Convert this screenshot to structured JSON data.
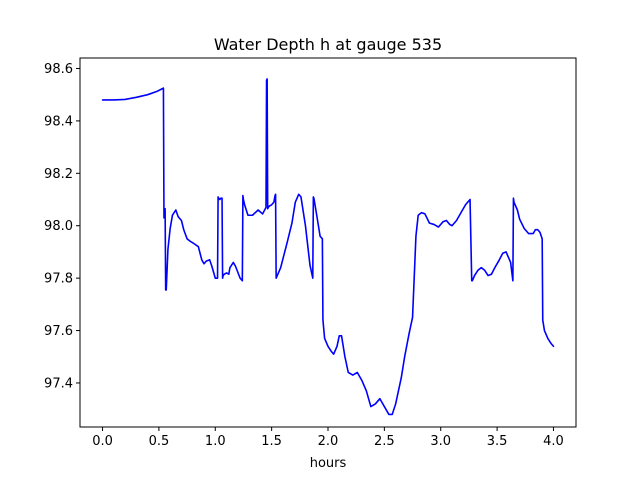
{
  "chart_data": {
    "type": "line",
    "title": "Water Depth h at gauge 535",
    "xlabel": "hours",
    "ylabel": "",
    "xlim": [
      -0.2,
      4.2
    ],
    "ylim": [
      97.232,
      98.64
    ],
    "xticks": [
      0.0,
      0.5,
      1.0,
      1.5,
      2.0,
      2.5,
      3.0,
      3.5,
      4.0
    ],
    "xtick_labels": [
      "0.0",
      "0.5",
      "1.0",
      "1.5",
      "2.0",
      "2.5",
      "3.0",
      "3.5",
      "4.0"
    ],
    "yticks": [
      97.4,
      97.6,
      97.8,
      98.0,
      98.2,
      98.4,
      98.6
    ],
    "ytick_labels": [
      "97.4",
      "97.6",
      "97.8",
      "98.0",
      "98.2",
      "98.4",
      "98.6"
    ],
    "grid": false,
    "series": [
      {
        "color": "#0000ff",
        "x": [
          0.0,
          0.1,
          0.2,
          0.3,
          0.4,
          0.48,
          0.54,
          0.545,
          0.555,
          0.56,
          0.565,
          0.58,
          0.6,
          0.62,
          0.65,
          0.67,
          0.7,
          0.72,
          0.75,
          0.78,
          0.8,
          0.85,
          0.88,
          0.9,
          0.92,
          0.95,
          0.97,
          1.0,
          1.02,
          1.025,
          1.03,
          1.04,
          1.05,
          1.06,
          1.065,
          1.07,
          1.08,
          1.1,
          1.12,
          1.13,
          1.16,
          1.18,
          1.22,
          1.24,
          1.245,
          1.25,
          1.26,
          1.29,
          1.33,
          1.38,
          1.42,
          1.45,
          1.455,
          1.46,
          1.465,
          1.47,
          1.48,
          1.5,
          1.52,
          1.53,
          1.535,
          1.54,
          1.55,
          1.58,
          1.61,
          1.64,
          1.68,
          1.71,
          1.74,
          1.76,
          1.8,
          1.84,
          1.865,
          1.87,
          1.875,
          1.9,
          1.93,
          1.95,
          1.955,
          1.97,
          2.0,
          2.03,
          2.05,
          2.08,
          2.1,
          2.12,
          2.15,
          2.18,
          2.22,
          2.26,
          2.3,
          2.34,
          2.38,
          2.42,
          2.46,
          2.5,
          2.54,
          2.57,
          2.6,
          2.62,
          2.65,
          2.68,
          2.72,
          2.75,
          2.78,
          2.79,
          2.795,
          2.8,
          2.83,
          2.86,
          2.9,
          2.94,
          2.98,
          3.02,
          3.05,
          3.08,
          3.1,
          3.14,
          3.18,
          3.22,
          3.26,
          3.275,
          3.28,
          3.3,
          3.33,
          3.36,
          3.39,
          3.42,
          3.45,
          3.48,
          3.52,
          3.55,
          3.58,
          3.6,
          3.62,
          3.64,
          3.645,
          3.65,
          3.68,
          3.7,
          3.74,
          3.78,
          3.82,
          3.84,
          3.86,
          3.88,
          3.9,
          3.905,
          3.92,
          3.95,
          3.98,
          4.0
        ],
        "values": [
          98.48,
          98.48,
          98.482,
          98.49,
          98.5,
          98.512,
          98.525,
          98.03,
          98.065,
          97.755,
          97.755,
          97.91,
          97.99,
          98.04,
          98.06,
          98.035,
          98.02,
          97.985,
          97.95,
          97.94,
          97.935,
          97.92,
          97.87,
          97.855,
          97.865,
          97.87,
          97.845,
          97.8,
          97.8,
          98.11,
          98.105,
          98.1,
          98.105,
          98.105,
          97.8,
          97.81,
          97.815,
          97.82,
          97.815,
          97.84,
          97.86,
          97.845,
          97.8,
          97.79,
          98.115,
          98.1,
          98.08,
          98.04,
          98.04,
          98.06,
          98.045,
          98.07,
          98.555,
          98.56,
          98.065,
          98.07,
          98.075,
          98.08,
          98.09,
          98.115,
          98.12,
          97.8,
          97.81,
          97.84,
          97.89,
          97.94,
          98.01,
          98.09,
          98.12,
          98.11,
          98.0,
          97.85,
          97.8,
          98.11,
          98.105,
          98.04,
          97.96,
          97.95,
          97.64,
          97.57,
          97.54,
          97.52,
          97.51,
          97.54,
          97.58,
          97.58,
          97.5,
          97.44,
          97.43,
          97.44,
          97.41,
          97.37,
          97.31,
          97.32,
          97.34,
          97.31,
          97.28,
          97.28,
          97.32,
          97.36,
          97.42,
          97.5,
          97.59,
          97.65,
          97.96,
          98.0,
          98.02,
          98.04,
          98.05,
          98.045,
          98.01,
          98.005,
          97.995,
          98.015,
          98.02,
          98.005,
          98.0,
          98.02,
          98.05,
          98.08,
          98.1,
          97.79,
          97.79,
          97.81,
          97.83,
          97.84,
          97.83,
          97.81,
          97.815,
          97.84,
          97.87,
          97.895,
          97.9,
          97.88,
          97.86,
          97.79,
          98.105,
          98.09,
          98.06,
          98.025,
          97.99,
          97.97,
          97.97,
          97.985,
          97.985,
          97.975,
          97.95,
          97.64,
          97.6,
          97.57,
          97.55,
          97.54
        ]
      }
    ]
  }
}
